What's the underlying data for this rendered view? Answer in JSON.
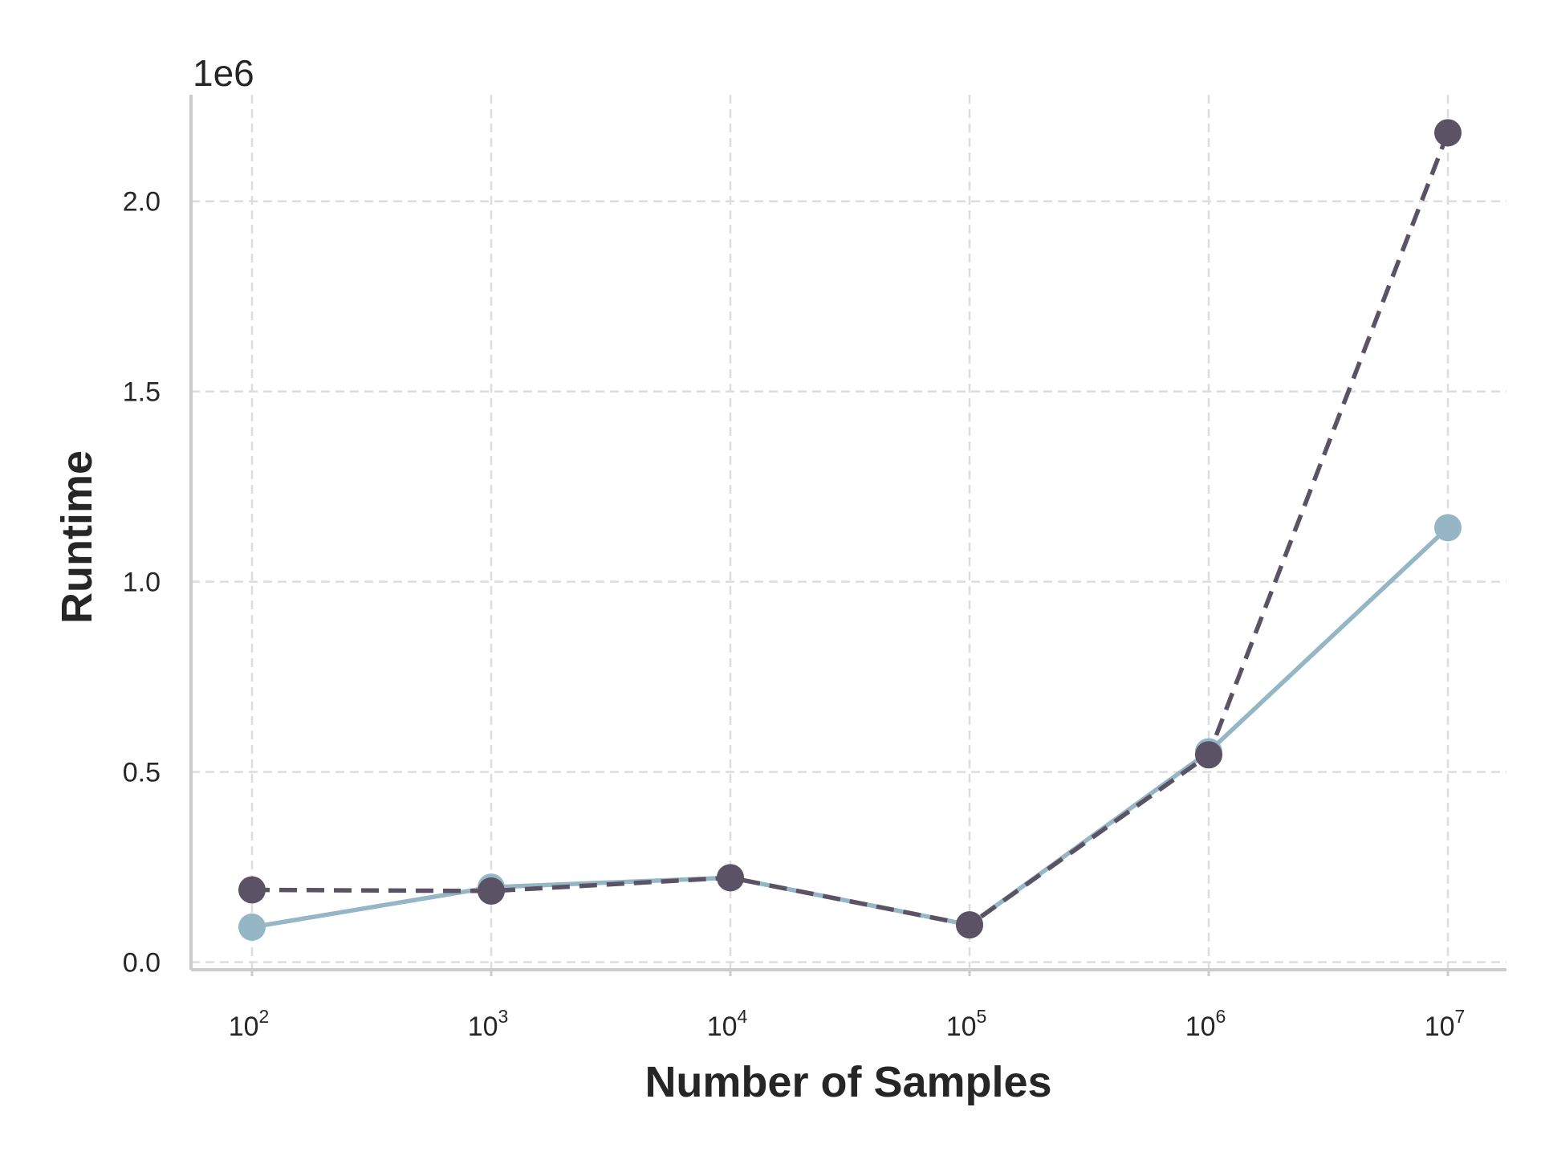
{
  "chart_data": {
    "type": "line",
    "title": "",
    "xlabel": "Number of Samples",
    "ylabel": "Runtime",
    "x_scale": "log",
    "y_offset_label": "1e6",
    "x": [
      100,
      1000,
      10000,
      100000,
      1000000,
      10000000
    ],
    "x_tick_labels": [
      {
        "base": "10",
        "exp": "2"
      },
      {
        "base": "10",
        "exp": "3"
      },
      {
        "base": "10",
        "exp": "4"
      },
      {
        "base": "10",
        "exp": "5"
      },
      {
        "base": "10",
        "exp": "6"
      },
      {
        "base": "10",
        "exp": "7"
      }
    ],
    "y_ticks": [
      0.0,
      0.5,
      1.0,
      1.5,
      2.0
    ],
    "y_tick_labels": [
      "0.0",
      "0.5",
      "1.0",
      "1.5",
      "2.0"
    ],
    "ylim": [
      -0.02,
      2.28
    ],
    "grid": true,
    "series": [
      {
        "color": "#94b6c5",
        "line_style": "solid",
        "marker": "circle",
        "values": [
          0.092,
          0.197,
          0.222,
          0.098,
          0.553,
          1.142
        ]
      },
      {
        "color": "#5b5266",
        "line_style": "dashed",
        "marker": "circle",
        "values": [
          0.19,
          0.187,
          0.222,
          0.098,
          0.545,
          2.18
        ]
      }
    ]
  }
}
